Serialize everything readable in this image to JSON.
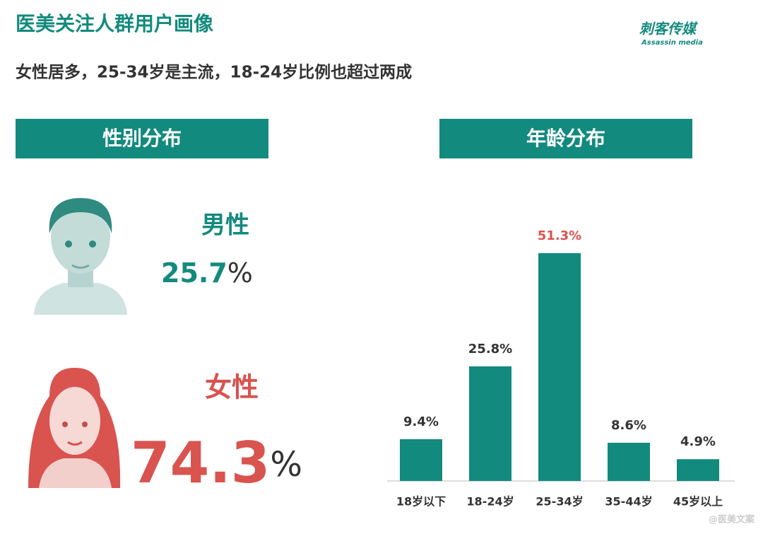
{
  "header": {
    "title": "医美关注人群用户画像",
    "logo": "刺客传媒",
    "logo_sub": "Assassin media",
    "subtitle": "女性居多，25-34岁是主流，18-24岁比例也超过两成"
  },
  "gender": {
    "title": "性别分布",
    "male": {
      "label": "男性",
      "value": 25.7,
      "unit": "%"
    },
    "female": {
      "label": "女性",
      "value": 74.3,
      "unit": "%"
    }
  },
  "age_title": "年龄分布",
  "chart_data": {
    "type": "bar",
    "categories": [
      "18岁以下",
      "18-24岁",
      "25-34岁",
      "35-44岁",
      "45岁以上"
    ],
    "values": [
      9.4,
      25.8,
      51.3,
      8.6,
      4.9
    ],
    "value_labels": [
      "9.4%",
      "25.8%",
      "51.3%",
      "8.6%",
      "4.9%"
    ],
    "value_label_colors": [
      "#333333",
      "#333333",
      "#d9534f",
      "#333333",
      "#333333"
    ],
    "color": "#138a7e"
  },
  "watermark": "@医美文案"
}
